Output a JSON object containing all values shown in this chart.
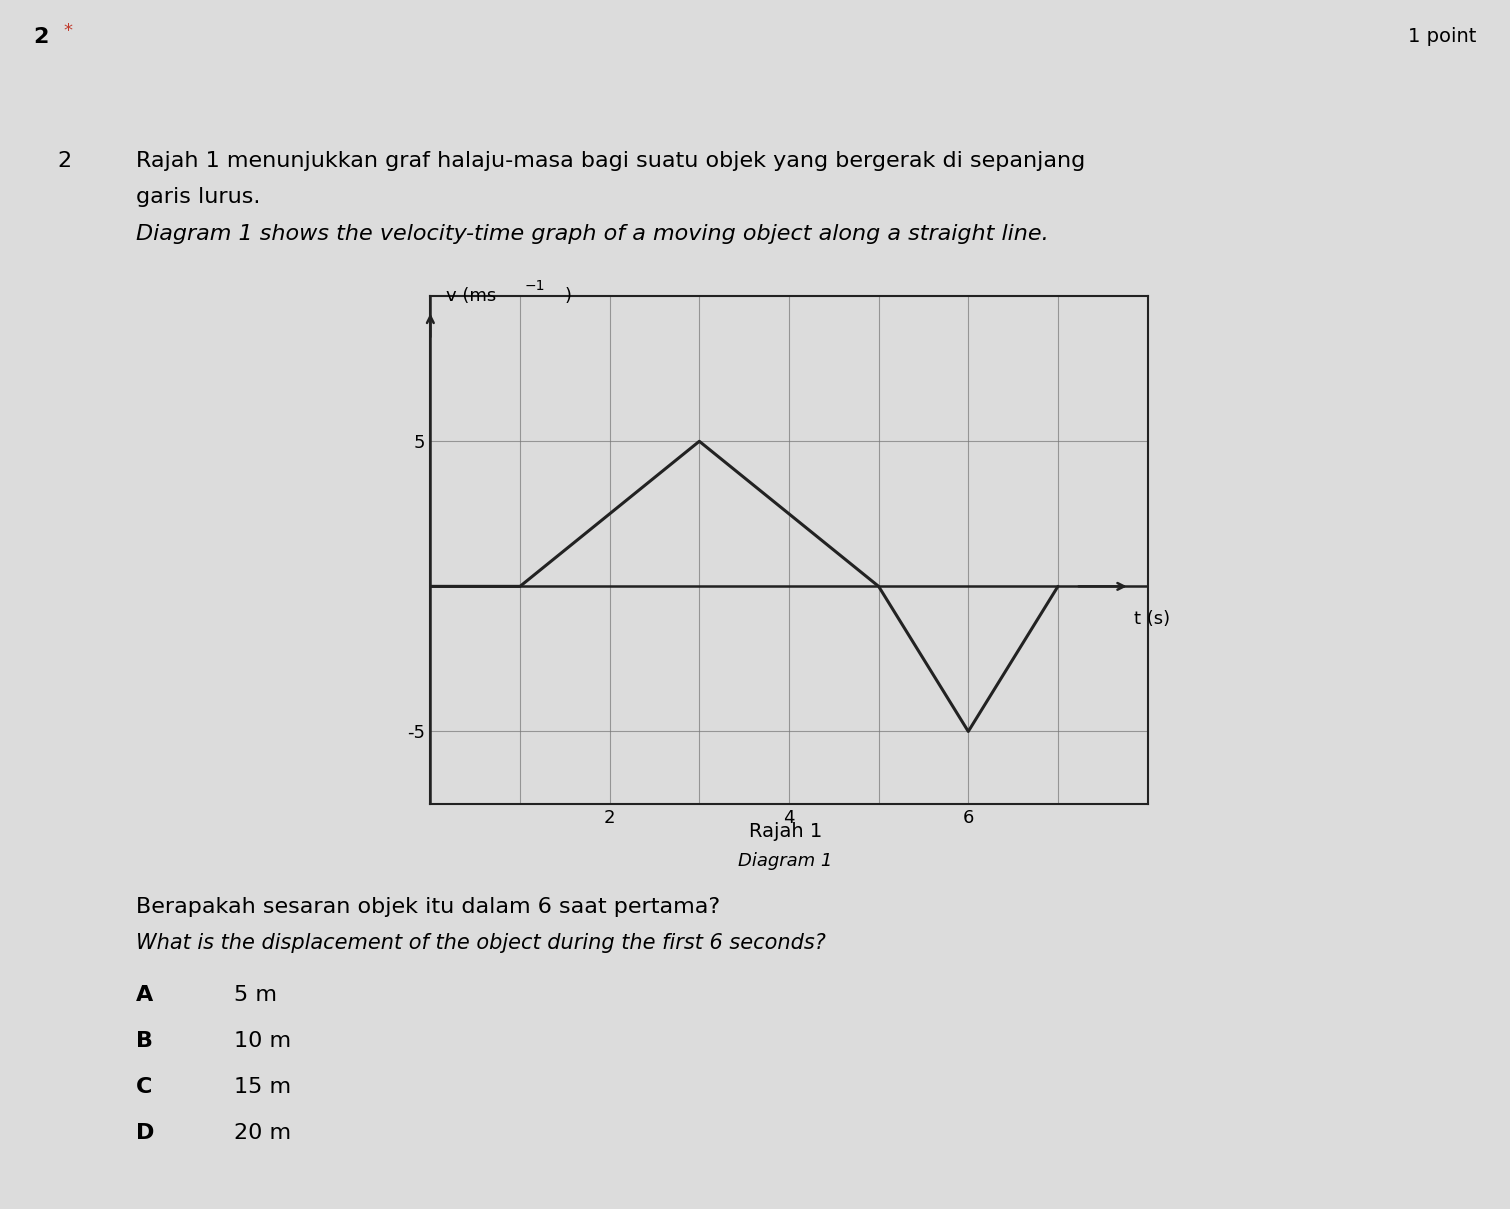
{
  "page_bg": "#dcdcdc",
  "question_number": "2",
  "star_color": "#c0392b",
  "point_text": "1 point",
  "malay_text_line1": "Rajah 1 menunjukkan graf halaju-masa bagi suatu objek yang bergerak di sepanjang",
  "malay_text_line2": "garis lurus.",
  "english_text": "Diagram 1 shows the velocity-time graph of a moving object along a straight line.",
  "diagram_label_malay": "Rajah 1",
  "diagram_label_english": "Diagram 1",
  "question_malay": "Berapakah sesaran objek itu dalam 6 saat pertama?",
  "question_english": "What is the displacement of the object during the first 6 seconds?",
  "option_letters": [
    "A",
    "B",
    "C",
    "D"
  ],
  "option_values": [
    "5 m",
    "10 m",
    "15 m",
    "20 m"
  ],
  "graph_x_label": "t (s)",
  "graph_y_label_normal": "v (ms",
  "graph_y_superscript": "-1",
  "graph_y_label_end": ")",
  "graph_line_points_t": [
    0,
    1,
    3,
    5,
    6,
    7
  ],
  "graph_line_points_v": [
    0,
    0,
    5,
    0,
    -5,
    0
  ],
  "xlim": [
    0,
    8
  ],
  "ylim": [
    -7.5,
    10
  ],
  "xticks": [
    1,
    2,
    3,
    4,
    5,
    6,
    7
  ],
  "xtick_labels": [
    "",
    "2",
    "",
    "4",
    "",
    "6",
    ""
  ],
  "yticks": [
    -5,
    0,
    5
  ],
  "ytick_labels": [
    "-5",
    "",
    "5"
  ],
  "grid_xticks": [
    1,
    2,
    3,
    4,
    5,
    6,
    7
  ],
  "grid_yticks": [
    -5,
    -2.5,
    0,
    2.5,
    5,
    7.5
  ],
  "graph_bg": "#dcdcdc",
  "line_color": "#222222",
  "grid_color": "#777777",
  "axis_color": "#222222",
  "font_size_body": 16,
  "font_size_label": 14,
  "font_size_tick": 13,
  "font_size_top": 16
}
